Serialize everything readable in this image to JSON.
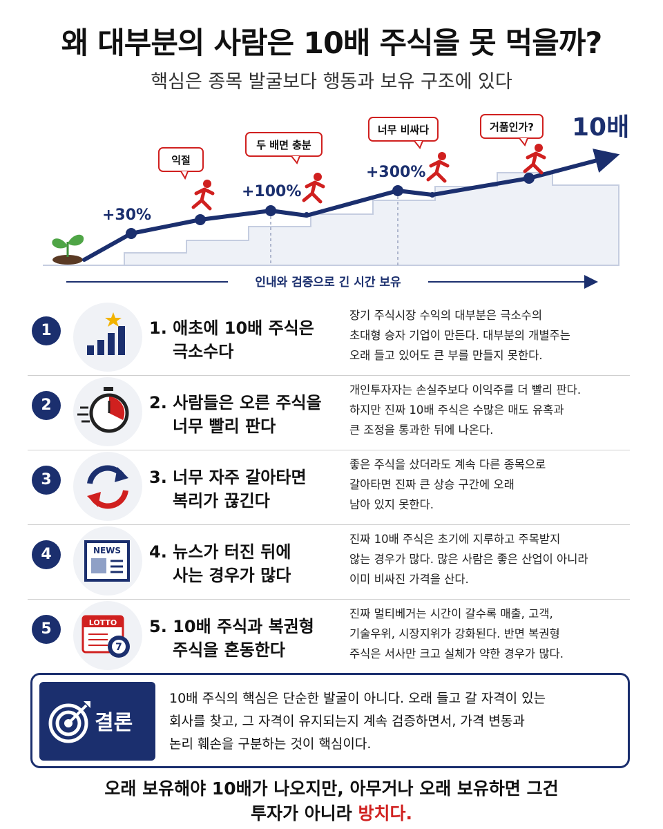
{
  "title": "왜 대부분의 사람은 10배 주식을 못 먹을까?",
  "subtitle": "핵심은 종목 발굴보다 행동과 보유 구조에 있다",
  "hero": {
    "labels": [
      "+30%",
      "+100%",
      "+300%"
    ],
    "target": "10배",
    "bubbles": [
      "익절",
      "두 배면 충분",
      "너무 비싸다",
      "거품인가?"
    ],
    "timeline": "인내와 검증으로 긴 시간 보유"
  },
  "colors": {
    "navy": "#1b2f6e",
    "red": "#d0201f"
  },
  "items": [
    {
      "num": "1",
      "icon": "bar-chart-star-icon",
      "title_line1": "1. 애초에 10배 주식은",
      "title_line2": "극소수다",
      "desc": [
        "장기 주식시장 수익의 대부분은 극소수의",
        "초대형 승자 기업이 만든다. 대부분의 개별주는",
        "오래 들고 있어도 큰 부를 만들지 못한다."
      ]
    },
    {
      "num": "2",
      "icon": "stopwatch-icon",
      "title_line1": "2. 사람들은 오른 주식을",
      "title_line2": "너무 빨리 판다",
      "desc": [
        "개인투자자는 손실주보다 이익주를 더 빨리 판다.",
        "하지만 진짜 10배 주식은 수많은 매도 유혹과",
        "큰 조정을 통과한 뒤에 나온다."
      ]
    },
    {
      "num": "3",
      "icon": "refresh-arrows-icon",
      "title_line1": "3. 너무 자주 갈아타면",
      "title_line2": "복리가 끊긴다",
      "desc": [
        "좋은 주식을 샀더라도 계속 다른 종목으로",
        "갈아타면 진짜 큰 상승 구간에 오래",
        "남아 있지 못한다."
      ]
    },
    {
      "num": "4",
      "icon": "newspaper-icon",
      "icon_text": "NEWS",
      "title_line1": "4. 뉴스가 터진 뒤에",
      "title_line2": "사는 경우가 많다",
      "desc": [
        "진짜 10배 주식은 초기에 지루하고 주목받지",
        "않는 경우가 많다. 많은 사람은 좋은 산업이 아니라",
        "이미 비싸진 가격을 산다."
      ]
    },
    {
      "num": "5",
      "icon": "lotto-ticket-icon",
      "icon_text": "LOTTO",
      "icon_ball": "7",
      "title_line1": "5. 10배 주식과 복권형",
      "title_line2": "주식을 혼동한다",
      "desc": [
        "진짜 멀티베거는 시간이 갈수록 매출, 고객,",
        "기술우위, 시장지위가 강화된다. 반면 복권형",
        "주식은 서사만 크고 실체가 약한 경우가 많다."
      ]
    }
  ],
  "conclusion": {
    "label": "결론",
    "lines": [
      "10배 주식의 핵심은 단순한 발굴이 아니다. 오래 들고 갈 자격이 있는",
      "회사를 찾고, 그 자격이 유지되는지 계속 검증하면서, 가격 변동과",
      "논리 훼손을 구분하는 것이 핵심이다."
    ]
  },
  "bottom": {
    "line1": "오래 보유해야 10배가 나오지만, 아무거나 오래 보유하면 그건",
    "line2_prefix": "투자가 아니라 ",
    "line2_emphasis": "방치다."
  }
}
